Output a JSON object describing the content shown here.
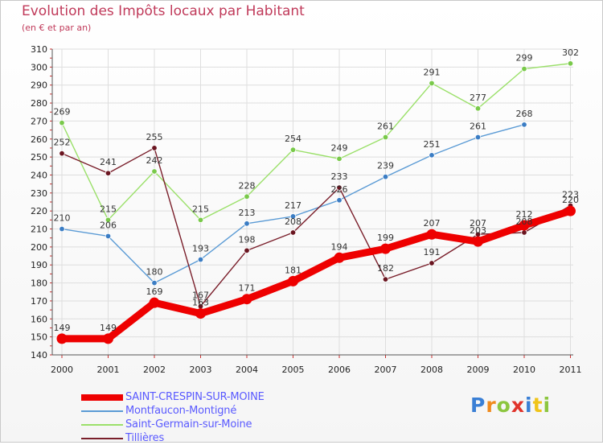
{
  "header": {
    "title": "Evolution des Impôts locaux par Habitant",
    "subtitle": "(en € et par an)"
  },
  "logo": {
    "letters": [
      "P",
      "r",
      "o",
      "x",
      "i",
      "t",
      "i"
    ],
    "colors": [
      "#3a7fd5",
      "#f08a1c",
      "#8cc63f",
      "#e0332b",
      "#3a7fd5",
      "#f0c419",
      "#8cc63f"
    ]
  },
  "chart_data": {
    "type": "line",
    "title": "Evolution des Impôts locaux par Habitant",
    "subtitle": "(en € et par an)",
    "xlabel": "",
    "ylabel": "",
    "categories": [
      "2000",
      "2001",
      "2002",
      "2003",
      "2004",
      "2005",
      "2006",
      "2007",
      "2008",
      "2009",
      "2010",
      "2011"
    ],
    "ylim": [
      140,
      310
    ],
    "yticks": [
      140,
      150,
      160,
      170,
      180,
      190,
      200,
      210,
      220,
      230,
      240,
      250,
      260,
      270,
      280,
      290,
      300,
      310
    ],
    "grid": true,
    "legend_position": "bottom-left",
    "series": [
      {
        "name": "Montfaucon-Montigné",
        "color": "#5b9bd5",
        "point_color": "#3b7dc4",
        "values": [
          210,
          206,
          180,
          193,
          213,
          217,
          226,
          239,
          251,
          261,
          268,
          null
        ]
      },
      {
        "name": "Saint-Germain-sur-Moine",
        "color": "#9be06a",
        "point_color": "#79c94a",
        "values": [
          269,
          215,
          242,
          215,
          228,
          254,
          249,
          261,
          291,
          277,
          299,
          302
        ]
      },
      {
        "name": "Tillières",
        "color": "#7a1f2b",
        "point_color": "#6a1520",
        "values": [
          252,
          241,
          255,
          167,
          198,
          208,
          233,
          182,
          191,
          207,
          208,
          223
        ]
      },
      {
        "name": "SAINT-CRESPIN-SUR-MOINE",
        "color": "#ee0000",
        "point_color": "#ee0000",
        "values": [
          149,
          149,
          169,
          163,
          171,
          181,
          194,
          199,
          207,
          203,
          212,
          220
        ]
      }
    ],
    "legend": [
      "SAINT-CRESPIN-SUR-MOINE",
      "Montfaucon-Montigné",
      "Saint-Germain-sur-Moine",
      "Tillières"
    ]
  }
}
